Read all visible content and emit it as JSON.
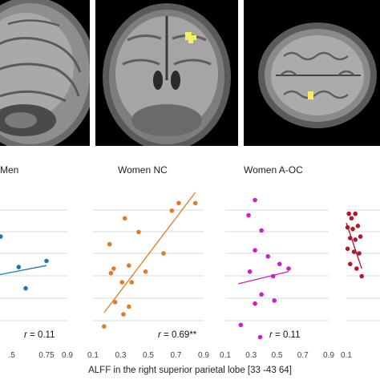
{
  "figure": {
    "x_axis_title": "ALFF in the right superior parietal lobe [33 -43 64]",
    "panels": {
      "men": {
        "title": "Men",
        "r_prefix": "r",
        "r_value": " = 0.11",
        "xticks": [
          ".5",
          "0.75",
          "0.9"
        ]
      },
      "women_nc": {
        "title": "Women NC",
        "r_prefix": "r",
        "r_value": " = 0.69**",
        "xticks": [
          "0.1",
          "0.3",
          "0.5",
          "0.7",
          "0.9"
        ]
      },
      "women_aoc": {
        "title": "Women A-OC",
        "r_prefix": "r",
        "r_value": " = 0.11",
        "xticks": [
          "0.1",
          "0.3",
          "0.5",
          "0.7",
          "0.9"
        ]
      },
      "right_partial": {
        "xticks": [
          "0.1"
        ]
      }
    }
  },
  "chart_data": [
    {
      "type": "scatter",
      "title": "Men",
      "xlabel": "ALFF in the right superior parietal lobe [33 -43 64]",
      "color": "#1f77b4",
      "points": [
        [
          0.42,
          0.71
        ],
        [
          0.55,
          0.51
        ],
        [
          0.75,
          0.55
        ],
        [
          0.6,
          0.37
        ]
      ],
      "fit_line": [
        [
          0.3,
          0.44
        ],
        [
          0.75,
          0.52
        ]
      ],
      "annotation": "r = 0.11"
    },
    {
      "type": "scatter",
      "title": "Women NC",
      "xlabel": "ALFF in the right superior parietal lobe [33 -43 64]",
      "color": "#e07b26",
      "xlim": [
        0.1,
        0.9
      ],
      "points": [
        [
          0.72,
          0.93
        ],
        [
          0.84,
          0.93
        ],
        [
          0.67,
          0.88
        ],
        [
          0.33,
          0.83
        ],
        [
          0.43,
          0.74
        ],
        [
          0.22,
          0.66
        ],
        [
          0.61,
          0.6
        ],
        [
          0.36,
          0.52
        ],
        [
          0.25,
          0.5
        ],
        [
          0.48,
          0.48
        ],
        [
          0.23,
          0.47
        ],
        [
          0.31,
          0.41
        ],
        [
          0.38,
          0.41
        ],
        [
          0.26,
          0.28
        ],
        [
          0.36,
          0.25
        ],
        [
          0.32,
          0.2
        ],
        [
          0.18,
          0.12
        ]
      ],
      "fit_line": [
        [
          0.18,
          0.21
        ],
        [
          0.84,
          1.0
        ]
      ],
      "annotation": "r = 0.69**"
    },
    {
      "type": "scatter",
      "title": "Women A-OC",
      "xlabel": "ALFF in the right superior parietal lobe [33 -43 64]",
      "color": "#c821c8",
      "xlim": [
        0.1,
        0.9
      ],
      "points": [
        [
          0.33,
          0.95
        ],
        [
          0.28,
          0.85
        ],
        [
          0.38,
          0.75
        ],
        [
          0.33,
          0.62
        ],
        [
          0.43,
          0.58
        ],
        [
          0.52,
          0.53
        ],
        [
          0.59,
          0.5
        ],
        [
          0.47,
          0.45
        ],
        [
          0.29,
          0.48
        ],
        [
          0.38,
          0.33
        ],
        [
          0.33,
          0.27
        ],
        [
          0.48,
          0.29
        ],
        [
          0.22,
          0.13
        ],
        [
          0.37,
          0.05
        ]
      ],
      "fit_line": [
        [
          0.2,
          0.4
        ],
        [
          0.59,
          0.48
        ]
      ],
      "annotation": "r = 0.11"
    },
    {
      "type": "scatter",
      "xlabel": "ALFF in the right superior parietal lobe [33 -43 64]",
      "color": "#b2182b",
      "points": [
        [
          0.12,
          0.86
        ],
        [
          0.14,
          0.83
        ],
        [
          0.17,
          0.86
        ],
        [
          0.11,
          0.77
        ],
        [
          0.15,
          0.76
        ],
        [
          0.19,
          0.78
        ],
        [
          0.13,
          0.7
        ],
        [
          0.17,
          0.69
        ],
        [
          0.21,
          0.71
        ],
        [
          0.11,
          0.63
        ],
        [
          0.16,
          0.61
        ],
        [
          0.2,
          0.6
        ],
        [
          0.13,
          0.53
        ],
        [
          0.18,
          0.5
        ],
        [
          0.22,
          0.45
        ]
      ],
      "fit_line": [
        [
          0.1,
          0.8
        ],
        [
          0.22,
          0.5
        ]
      ]
    }
  ]
}
